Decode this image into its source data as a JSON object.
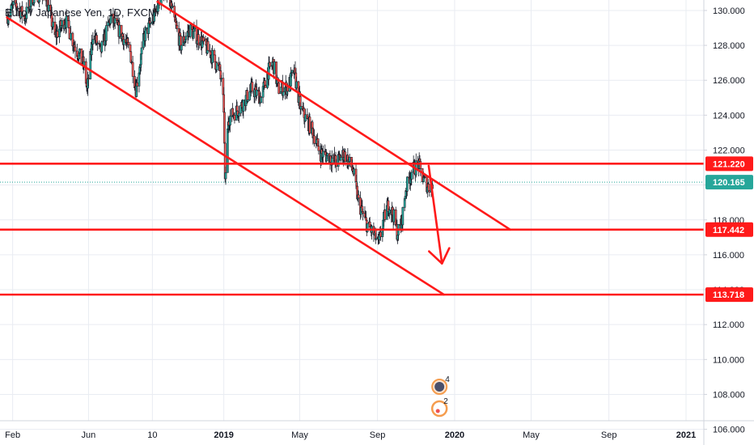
{
  "header": {
    "title": "Euro / Japanese Yen, 1D, FXCM"
  },
  "colors": {
    "up": "#26a69a",
    "down": "#ef5350",
    "candle_outline": "#131722",
    "drawing": "#ff1a1a",
    "last_price": "#26a69a",
    "grid": "#e9ecf2",
    "axis_text": "#131722"
  },
  "chart_data": {
    "type": "candlestick",
    "title": "Euro / Japanese Yen, 1D, FXCM",
    "x_ticks": [
      "Feb",
      "Jun",
      "10",
      "2019",
      "May",
      "Sep",
      "2020",
      "May",
      "Sep",
      "2021"
    ],
    "x_tick_dates": [
      "2018-02-01",
      "2018-06-01",
      "2018-09-10",
      "2019-01-01",
      "2019-05-01",
      "2019-09-01",
      "2020-01-01",
      "2020-05-01",
      "2020-09-01",
      "2021-01-01"
    ],
    "y_ticks": [
      "106.000",
      "108.000",
      "110.000",
      "112.000",
      "114.000",
      "116.000",
      "118.000",
      "120.000",
      "122.000",
      "124.000",
      "126.000",
      "128.000",
      "130.000"
    ],
    "y_range": [
      105.1,
      130.6
    ],
    "grid": true,
    "price_labels": [
      {
        "name": "resistance",
        "value": "121.220",
        "style": "drawing"
      },
      {
        "name": "last-price",
        "value": "120.165",
        "style": "last"
      },
      {
        "name": "support-1",
        "value": "117.442",
        "style": "drawing"
      },
      {
        "name": "support-2",
        "value": "113.718",
        "style": "drawing"
      }
    ],
    "horizontal_lines": [
      121.22,
      117.442,
      113.718
    ],
    "last_price": 120.165,
    "channel_lines": [
      {
        "name": "channel-upper",
        "from": [
          "2018-09-18",
          130.5
        ],
        "to": [
          "2020-03-29",
          117.44
        ]
      },
      {
        "name": "channel-lower",
        "from": [
          "2018-01-23",
          129.6
        ],
        "to": [
          "2019-12-15",
          113.72
        ]
      }
    ],
    "forecast_arrow": {
      "from": [
        "2019-11-21",
        121.1
      ],
      "to": [
        "2019-12-12",
        115.5
      ]
    },
    "price_path": [
      [
        "2018-01-24",
        129.7
      ],
      [
        "2018-02-05",
        130.4
      ],
      [
        "2018-02-20",
        129.6
      ],
      [
        "2018-03-08",
        131.0
      ],
      [
        "2018-03-26",
        130.8
      ],
      [
        "2018-04-09",
        128.5
      ],
      [
        "2018-04-25",
        129.5
      ],
      [
        "2018-05-10",
        128.0
      ],
      [
        "2018-05-25",
        126.8
      ],
      [
        "2018-05-30",
        125.4
      ],
      [
        "2018-06-08",
        128.7
      ],
      [
        "2018-06-20",
        127.6
      ],
      [
        "2018-07-06",
        129.6
      ],
      [
        "2018-07-24",
        128.6
      ],
      [
        "2018-08-06",
        127.6
      ],
      [
        "2018-08-15",
        125.5
      ],
      [
        "2018-08-28",
        128.5
      ],
      [
        "2018-09-12",
        129.6
      ],
      [
        "2018-09-26",
        131.2
      ],
      [
        "2018-10-08",
        130.4
      ],
      [
        "2018-10-25",
        128.0
      ],
      [
        "2018-11-08",
        128.9
      ],
      [
        "2018-11-25",
        128.3
      ],
      [
        "2018-12-12",
        127.5
      ],
      [
        "2018-12-26",
        126.5
      ],
      [
        "2019-01-01",
        124.4
      ],
      [
        "2019-01-03",
        120.0
      ],
      [
        "2019-01-08",
        123.8
      ],
      [
        "2019-01-28",
        124.5
      ],
      [
        "2019-02-14",
        125.5
      ],
      [
        "2019-03-01",
        125.0
      ],
      [
        "2019-03-12",
        126.5
      ],
      [
        "2019-03-20",
        127.0
      ],
      [
        "2019-03-28",
        125.5
      ],
      [
        "2019-04-12",
        125.6
      ],
      [
        "2019-04-22",
        126.5
      ],
      [
        "2019-05-03",
        124.3
      ],
      [
        "2019-05-20",
        123.2
      ],
      [
        "2019-06-03",
        121.8
      ],
      [
        "2019-06-18",
        121.6
      ],
      [
        "2019-06-28",
        121.3
      ],
      [
        "2019-07-10",
        121.8
      ],
      [
        "2019-07-24",
        120.9
      ],
      [
        "2019-08-02",
        119.0
      ],
      [
        "2019-08-14",
        117.8
      ],
      [
        "2019-08-26",
        117.2
      ],
      [
        "2019-09-03",
        116.6
      ],
      [
        "2019-09-10",
        117.9
      ],
      [
        "2019-09-18",
        118.9
      ],
      [
        "2019-09-26",
        118.3
      ],
      [
        "2019-10-02",
        117.3
      ],
      [
        "2019-10-08",
        117.6
      ],
      [
        "2019-10-16",
        119.8
      ],
      [
        "2019-10-25",
        120.8
      ],
      [
        "2019-11-05",
        121.2
      ],
      [
        "2019-11-12",
        120.3
      ],
      [
        "2019-11-21",
        119.9
      ],
      [
        "2019-11-27",
        120.1
      ]
    ],
    "event_markers": [
      {
        "name": "event-marker-1",
        "label": "4",
        "date": "2019-12-08"
      },
      {
        "name": "event-marker-2",
        "label": "2",
        "date": "2019-12-08"
      }
    ]
  }
}
